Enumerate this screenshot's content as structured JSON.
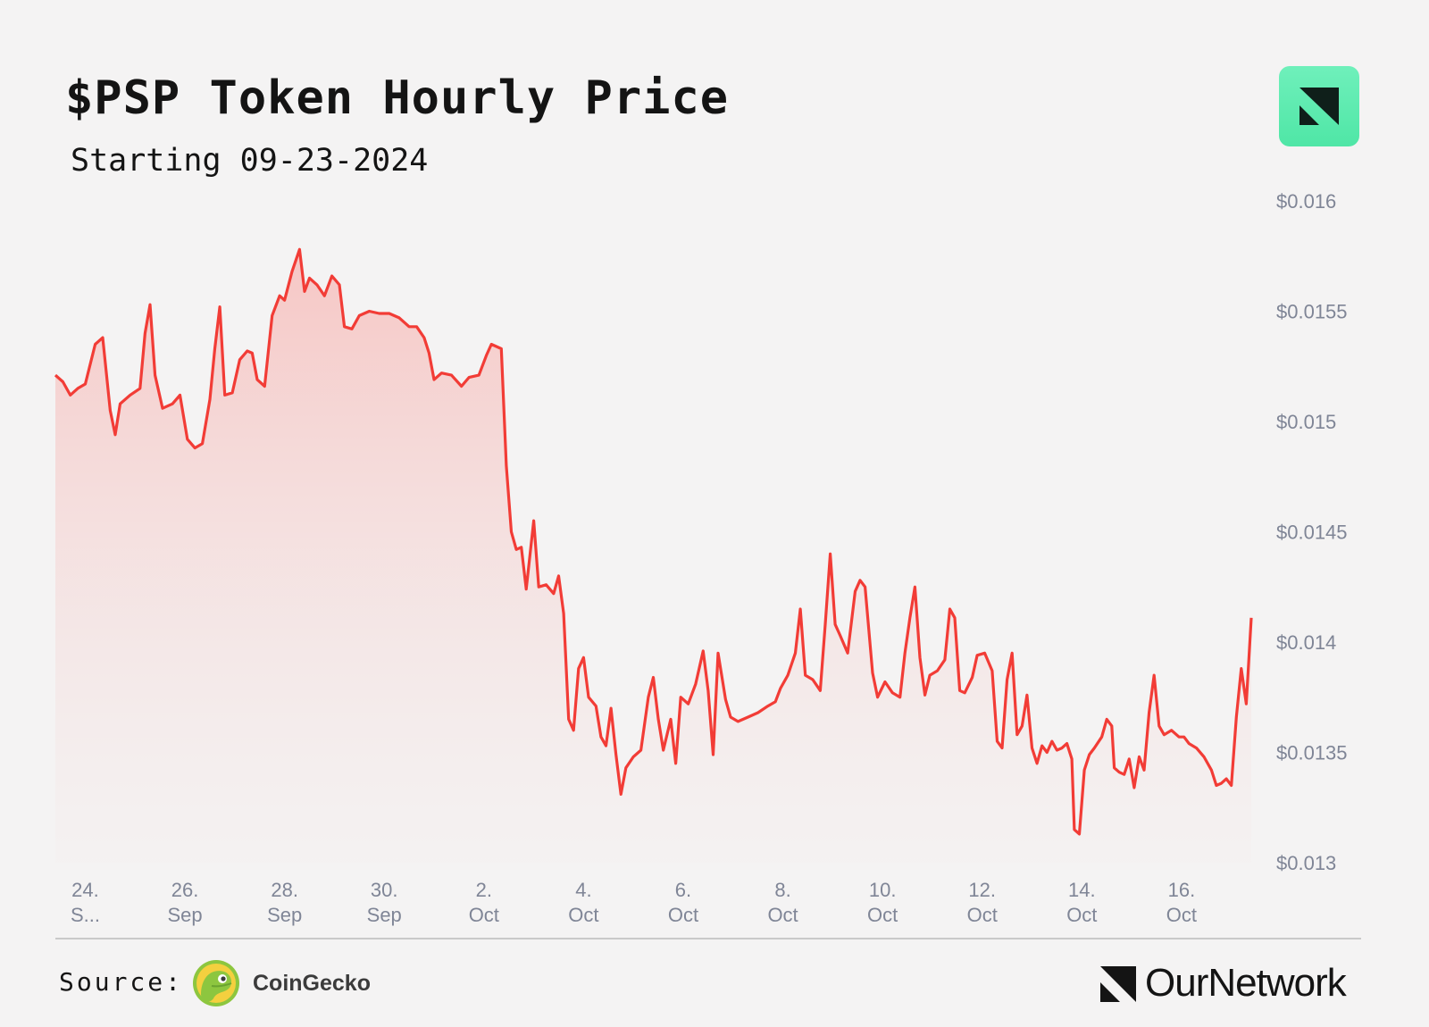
{
  "header": {
    "title": "$PSP Token Hourly Price",
    "subtitle": "Starting 09-23-2024"
  },
  "footer": {
    "source_label": "Source:",
    "source_name": "CoinGecko",
    "brand_name": "OurNetwork",
    "source_icon": "coingecko-logo-icon",
    "brand_icon": "ournetwork-logo-icon"
  },
  "colors": {
    "line": "#f23c36",
    "fill": "#f5c9c7",
    "badge": "#5beeb0"
  },
  "chart_data": {
    "type": "area",
    "title": "$PSP Token Hourly Price",
    "subtitle": "Starting 09-23-2024",
    "x_ticks": [
      {
        "day": 24,
        "lines": [
          "24.",
          "S..."
        ]
      },
      {
        "day": 26,
        "lines": [
          "26.",
          "Sep"
        ]
      },
      {
        "day": 28,
        "lines": [
          "28.",
          "Sep"
        ]
      },
      {
        "day": 30,
        "lines": [
          "30.",
          "Sep"
        ]
      },
      {
        "day": 32,
        "lines": [
          "2.",
          "Oct"
        ]
      },
      {
        "day": 34,
        "lines": [
          "4.",
          "Oct"
        ]
      },
      {
        "day": 36,
        "lines": [
          "6.",
          "Oct"
        ]
      },
      {
        "day": 38,
        "lines": [
          "8.",
          "Oct"
        ]
      },
      {
        "day": 40,
        "lines": [
          "10.",
          "Oct"
        ]
      },
      {
        "day": 42,
        "lines": [
          "12.",
          "Oct"
        ]
      },
      {
        "day": 44,
        "lines": [
          "14.",
          "Oct"
        ]
      },
      {
        "day": 46,
        "lines": [
          "16.",
          "Oct"
        ]
      }
    ],
    "y_ticks": [
      {
        "value": 0.016,
        "label": "$0.016"
      },
      {
        "value": 0.0155,
        "label": "$0.0155"
      },
      {
        "value": 0.015,
        "label": "$0.015"
      },
      {
        "value": 0.0145,
        "label": "$0.0145"
      },
      {
        "value": 0.014,
        "label": "$0.014"
      },
      {
        "value": 0.0135,
        "label": "$0.0135"
      },
      {
        "value": 0.013,
        "label": "$0.013"
      }
    ],
    "ylim": [
      0.013,
      0.016
    ],
    "xlim": [
      23.4,
      47.4
    ],
    "y_axis_position": "right",
    "grid": false,
    "series": [
      {
        "values": [
          [
            23.4,
            0.01521
          ],
          [
            23.55,
            0.01518
          ],
          [
            23.7,
            0.01512
          ],
          [
            23.85,
            0.01515
          ],
          [
            24.0,
            0.01517
          ],
          [
            24.2,
            0.01535
          ],
          [
            24.35,
            0.01538
          ],
          [
            24.5,
            0.01505
          ],
          [
            24.6,
            0.01494
          ],
          [
            24.7,
            0.01508
          ],
          [
            24.9,
            0.01512
          ],
          [
            25.1,
            0.01515
          ],
          [
            25.2,
            0.0154
          ],
          [
            25.3,
            0.01553
          ],
          [
            25.4,
            0.01521
          ],
          [
            25.55,
            0.01506
          ],
          [
            25.75,
            0.01508
          ],
          [
            25.9,
            0.01512
          ],
          [
            26.05,
            0.01492
          ],
          [
            26.2,
            0.01488
          ],
          [
            26.35,
            0.0149
          ],
          [
            26.5,
            0.0151
          ],
          [
            26.6,
            0.01533
          ],
          [
            26.7,
            0.01552
          ],
          [
            26.8,
            0.01512
          ],
          [
            26.95,
            0.01513
          ],
          [
            27.1,
            0.01528
          ],
          [
            27.25,
            0.01532
          ],
          [
            27.35,
            0.01531
          ],
          [
            27.45,
            0.01519
          ],
          [
            27.6,
            0.01516
          ],
          [
            27.75,
            0.01548
          ],
          [
            27.9,
            0.01557
          ],
          [
            28.0,
            0.01555
          ],
          [
            28.15,
            0.01568
          ],
          [
            28.3,
            0.01578
          ],
          [
            28.4,
            0.01559
          ],
          [
            28.5,
            0.01565
          ],
          [
            28.65,
            0.01562
          ],
          [
            28.8,
            0.01557
          ],
          [
            28.95,
            0.01566
          ],
          [
            29.1,
            0.01562
          ],
          [
            29.2,
            0.01543
          ],
          [
            29.35,
            0.01542
          ],
          [
            29.5,
            0.01548
          ],
          [
            29.7,
            0.0155
          ],
          [
            29.9,
            0.01549
          ],
          [
            30.1,
            0.01549
          ],
          [
            30.3,
            0.01547
          ],
          [
            30.5,
            0.01543
          ],
          [
            30.65,
            0.01543
          ],
          [
            30.8,
            0.01538
          ],
          [
            30.9,
            0.01531
          ],
          [
            31.0,
            0.01519
          ],
          [
            31.15,
            0.01522
          ],
          [
            31.35,
            0.01521
          ],
          [
            31.55,
            0.01516
          ],
          [
            31.7,
            0.0152
          ],
          [
            31.9,
            0.01521
          ],
          [
            32.05,
            0.0153
          ],
          [
            32.15,
            0.01535
          ],
          [
            32.25,
            0.01534
          ],
          [
            32.35,
            0.01533
          ],
          [
            32.45,
            0.0148
          ],
          [
            32.55,
            0.0145
          ],
          [
            32.65,
            0.01442
          ],
          [
            32.75,
            0.01443
          ],
          [
            32.85,
            0.01424
          ],
          [
            33.0,
            0.01455
          ],
          [
            33.1,
            0.01425
          ],
          [
            33.25,
            0.01426
          ],
          [
            33.4,
            0.01422
          ],
          [
            33.5,
            0.0143
          ],
          [
            33.6,
            0.01413
          ],
          [
            33.7,
            0.01365
          ],
          [
            33.8,
            0.0136
          ],
          [
            33.9,
            0.01388
          ],
          [
            34.0,
            0.01393
          ],
          [
            34.1,
            0.01375
          ],
          [
            34.25,
            0.01371
          ],
          [
            34.35,
            0.01357
          ],
          [
            34.45,
            0.01353
          ],
          [
            34.55,
            0.0137
          ],
          [
            34.65,
            0.01349
          ],
          [
            34.75,
            0.01331
          ],
          [
            34.85,
            0.01343
          ],
          [
            35.0,
            0.01348
          ],
          [
            35.15,
            0.01351
          ],
          [
            35.3,
            0.01375
          ],
          [
            35.4,
            0.01384
          ],
          [
            35.5,
            0.01365
          ],
          [
            35.6,
            0.01351
          ],
          [
            35.75,
            0.01365
          ],
          [
            35.85,
            0.01345
          ],
          [
            35.95,
            0.01375
          ],
          [
            36.1,
            0.01372
          ],
          [
            36.25,
            0.01381
          ],
          [
            36.4,
            0.01396
          ],
          [
            36.5,
            0.01378
          ],
          [
            36.6,
            0.01349
          ],
          [
            36.7,
            0.01395
          ],
          [
            36.85,
            0.01374
          ],
          [
            36.95,
            0.01366
          ],
          [
            37.1,
            0.01364
          ],
          [
            37.3,
            0.01366
          ],
          [
            37.5,
            0.01368
          ],
          [
            37.7,
            0.01371
          ],
          [
            37.85,
            0.01373
          ],
          [
            37.95,
            0.01379
          ],
          [
            38.1,
            0.01385
          ],
          [
            38.25,
            0.01395
          ],
          [
            38.35,
            0.01415
          ],
          [
            38.45,
            0.01385
          ],
          [
            38.6,
            0.01383
          ],
          [
            38.75,
            0.01378
          ],
          [
            38.85,
            0.01408
          ],
          [
            38.95,
            0.0144
          ],
          [
            39.05,
            0.01408
          ],
          [
            39.15,
            0.01403
          ],
          [
            39.3,
            0.01395
          ],
          [
            39.45,
            0.01423
          ],
          [
            39.55,
            0.01428
          ],
          [
            39.65,
            0.01425
          ],
          [
            39.8,
            0.01386
          ],
          [
            39.9,
            0.01375
          ],
          [
            40.05,
            0.01382
          ],
          [
            40.2,
            0.01377
          ],
          [
            40.35,
            0.01375
          ],
          [
            40.45,
            0.01395
          ],
          [
            40.55,
            0.01411
          ],
          [
            40.65,
            0.01425
          ],
          [
            40.75,
            0.01393
          ],
          [
            40.85,
            0.01376
          ],
          [
            40.95,
            0.01385
          ],
          [
            41.1,
            0.01387
          ],
          [
            41.25,
            0.01392
          ],
          [
            41.35,
            0.01415
          ],
          [
            41.45,
            0.01411
          ],
          [
            41.55,
            0.01378
          ],
          [
            41.65,
            0.01377
          ],
          [
            41.8,
            0.01384
          ],
          [
            41.9,
            0.01394
          ],
          [
            42.05,
            0.01395
          ],
          [
            42.2,
            0.01387
          ],
          [
            42.3,
            0.01355
          ],
          [
            42.4,
            0.01352
          ],
          [
            42.5,
            0.01383
          ],
          [
            42.6,
            0.01395
          ],
          [
            42.7,
            0.01358
          ],
          [
            42.8,
            0.01362
          ],
          [
            42.9,
            0.01376
          ],
          [
            43.0,
            0.01352
          ],
          [
            43.1,
            0.01345
          ],
          [
            43.2,
            0.01353
          ],
          [
            43.3,
            0.0135
          ],
          [
            43.4,
            0.01355
          ],
          [
            43.5,
            0.01351
          ],
          [
            43.6,
            0.01352
          ],
          [
            43.7,
            0.01354
          ],
          [
            43.8,
            0.01347
          ],
          [
            43.85,
            0.01315
          ],
          [
            43.95,
            0.01313
          ],
          [
            44.05,
            0.01342
          ],
          [
            44.15,
            0.01349
          ],
          [
            44.25,
            0.01352
          ],
          [
            44.4,
            0.01357
          ],
          [
            44.5,
            0.01365
          ],
          [
            44.6,
            0.01362
          ],
          [
            44.65,
            0.01343
          ],
          [
            44.75,
            0.01341
          ],
          [
            44.85,
            0.0134
          ],
          [
            44.95,
            0.01347
          ],
          [
            45.05,
            0.01334
          ],
          [
            45.15,
            0.01348
          ],
          [
            45.25,
            0.01342
          ],
          [
            45.35,
            0.01368
          ],
          [
            45.45,
            0.01385
          ],
          [
            45.55,
            0.01362
          ],
          [
            45.65,
            0.01358
          ],
          [
            45.8,
            0.0136
          ],
          [
            45.95,
            0.01357
          ],
          [
            46.05,
            0.01357
          ],
          [
            46.15,
            0.01354
          ],
          [
            46.3,
            0.01352
          ],
          [
            46.45,
            0.01348
          ],
          [
            46.6,
            0.01342
          ],
          [
            46.7,
            0.01335
          ],
          [
            46.8,
            0.01336
          ],
          [
            46.9,
            0.01338
          ],
          [
            47.0,
            0.01335
          ],
          [
            47.1,
            0.01366
          ],
          [
            47.2,
            0.01388
          ],
          [
            47.3,
            0.01372
          ],
          [
            47.4,
            0.01411
          ]
        ]
      }
    ]
  }
}
